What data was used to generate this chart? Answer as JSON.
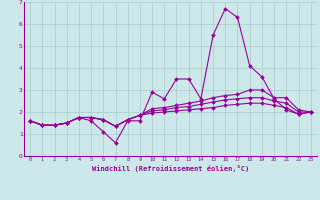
{
  "xlabel": "Windchill (Refroidissement éolien,°C)",
  "background_color": "#cce8e8",
  "line_color": "#990099",
  "grid_color": "#aacccc",
  "xlim": [
    -0.5,
    23.5
  ],
  "ylim": [
    0,
    7
  ],
  "xticks": [
    0,
    1,
    2,
    3,
    4,
    5,
    6,
    7,
    8,
    9,
    10,
    11,
    12,
    13,
    14,
    15,
    16,
    17,
    18,
    19,
    20,
    21,
    22,
    23
  ],
  "yticks": [
    0,
    1,
    2,
    3,
    4,
    5,
    6,
    7
  ],
  "series": [
    [
      1.6,
      1.4,
      1.4,
      1.5,
      1.75,
      1.6,
      1.1,
      0.6,
      1.6,
      1.6,
      2.9,
      2.6,
      3.5,
      3.5,
      2.6,
      5.5,
      6.7,
      6.3,
      4.1,
      3.6,
      2.6,
      2.1,
      1.9,
      2.0
    ],
    [
      1.6,
      1.4,
      1.4,
      1.5,
      1.75,
      1.75,
      1.65,
      1.35,
      1.65,
      1.85,
      2.15,
      2.2,
      2.3,
      2.4,
      2.5,
      2.65,
      2.75,
      2.8,
      3.0,
      3.0,
      2.65,
      2.65,
      2.1,
      2.0
    ],
    [
      1.6,
      1.4,
      1.4,
      1.5,
      1.75,
      1.75,
      1.65,
      1.35,
      1.65,
      1.85,
      2.05,
      2.1,
      2.2,
      2.25,
      2.35,
      2.45,
      2.55,
      2.6,
      2.65,
      2.65,
      2.5,
      2.4,
      2.0,
      2.0
    ],
    [
      1.6,
      1.4,
      1.4,
      1.5,
      1.75,
      1.75,
      1.65,
      1.35,
      1.65,
      1.85,
      1.95,
      2.0,
      2.05,
      2.1,
      2.15,
      2.2,
      2.3,
      2.35,
      2.4,
      2.4,
      2.3,
      2.2,
      1.9,
      2.0
    ]
  ]
}
